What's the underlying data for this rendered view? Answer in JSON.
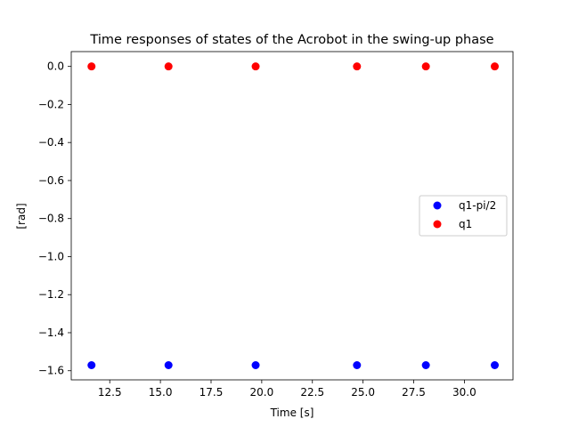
{
  "chart_data": {
    "type": "scatter",
    "title": "Time responses of states of the Acrobot in the swing-up phase",
    "xlabel": "Time [s]",
    "ylabel": "[rad]",
    "xlim": [
      10.6,
      32.4
    ],
    "ylim": [
      -1.648,
      0.078
    ],
    "x_ticks": [
      12.5,
      15.0,
      17.5,
      20.0,
      22.5,
      25.0,
      27.5,
      30.0
    ],
    "x_tick_labels": [
      "12.5",
      "15.0",
      "17.5",
      "20.0",
      "22.5",
      "25.0",
      "27.5",
      "30.0"
    ],
    "y_ticks": [
      0.0,
      -0.2,
      -0.4,
      -0.6,
      -0.8,
      -1.0,
      -1.2,
      -1.4,
      -1.6
    ],
    "y_tick_labels": [
      "0.0",
      "−0.2",
      "−0.4",
      "−0.6",
      "−0.8",
      "−1.0",
      "−1.2",
      "−1.4",
      "−1.6"
    ],
    "grid": false,
    "legend_position": "center-right",
    "series": [
      {
        "name": "q1-pi/2",
        "color": "#0000ff",
        "x": [
          11.6,
          15.4,
          19.7,
          24.7,
          28.1,
          31.5
        ],
        "y": [
          -1.5708,
          -1.5708,
          -1.5708,
          -1.5708,
          -1.5708,
          -1.5708
        ]
      },
      {
        "name": "q1",
        "color": "#ff0000",
        "x": [
          11.6,
          15.4,
          19.7,
          24.7,
          28.1,
          31.5
        ],
        "y": [
          0.0,
          0.0,
          0.0,
          0.0,
          0.0,
          0.0
        ]
      }
    ]
  }
}
